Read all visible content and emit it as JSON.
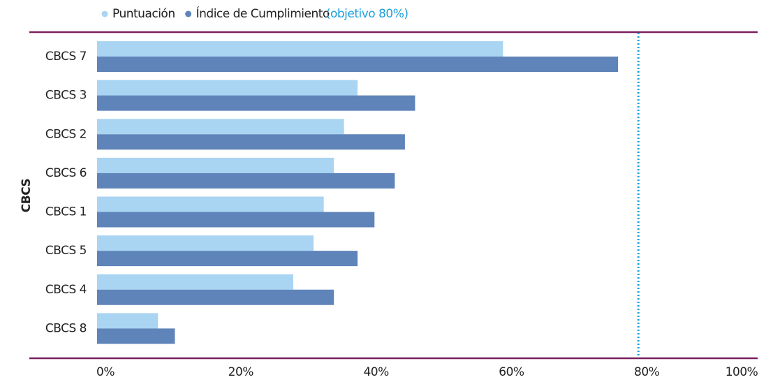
{
  "chart_data": {
    "type": "bar",
    "orientation": "horizontal",
    "y_label": "CBCS",
    "categories": [
      "CBCS 7",
      "CBCS 3",
      "CBCS 2",
      "CBCS 6",
      "CBCS 1",
      "CBCS 5",
      "CBCS 4",
      "CBCS 8"
    ],
    "series": [
      {
        "name": "Puntuación",
        "color": "#a9d5f2",
        "values": [
          60,
          38.5,
          36.5,
          35,
          33.5,
          32,
          29,
          9
        ]
      },
      {
        "name": "Índice de Cumplimiento",
        "color": "#5e84b9",
        "values": [
          77,
          47,
          45.5,
          44,
          41,
          38.5,
          35,
          11.5
        ]
      }
    ],
    "target": {
      "value": 80,
      "label": "(objetivo 80%)",
      "color": "#1ea0dc"
    },
    "xlim": [
      0,
      100
    ],
    "xticks": [
      {
        "value": 0,
        "label": "0%"
      },
      {
        "value": 20,
        "label": "20%"
      },
      {
        "value": 40,
        "label": "40%"
      },
      {
        "value": 60,
        "label": "60%"
      },
      {
        "value": 80,
        "label": "80%"
      },
      {
        "value": 100,
        "label": "100%"
      }
    ],
    "legend": "top"
  }
}
